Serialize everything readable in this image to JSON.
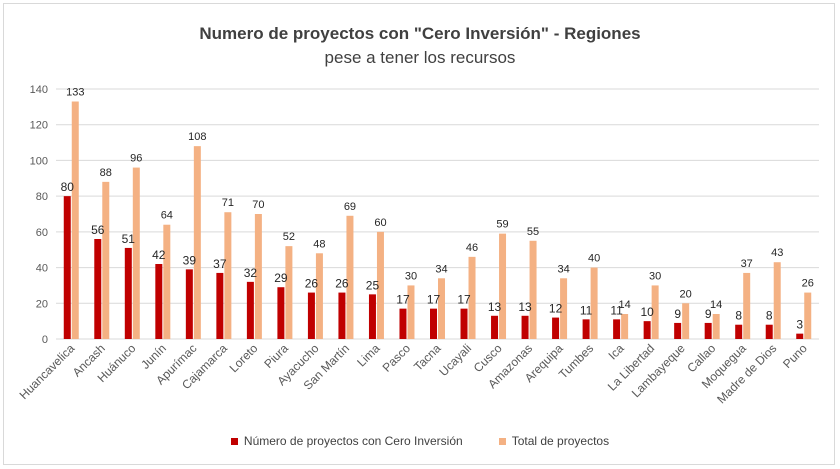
{
  "colors": {
    "series1": "#c00000",
    "series2": "#f4b183",
    "grid": "#d9d9d9",
    "text": "#595959"
  },
  "chart_data": {
    "type": "bar",
    "title": "Numero de proyectos con \"Cero Inversión\" - Regiones",
    "subtitle": "pese a tener los recursos",
    "categories": [
      "Huancavelica",
      "Ancash",
      "Huánuco",
      "Junín",
      "Apurímac",
      "Cajamarca",
      "Loreto",
      "Piura",
      "Ayacucho",
      "San Martín",
      "Lima",
      "Pasco",
      "Tacna",
      "Ucayali",
      "Cusco",
      "Amazonas",
      "Arequipa",
      "Tumbes",
      "Ica",
      "La Libertad",
      "Lambayeque",
      "Callao",
      "Moquegua",
      "Madre de Dios",
      "Puno"
    ],
    "series": [
      {
        "name": "Número de proyectos con Cero Inversión",
        "values": [
          80,
          56,
          51,
          42,
          39,
          37,
          32,
          29,
          26,
          26,
          25,
          17,
          17,
          17,
          13,
          13,
          12,
          11,
          11,
          10,
          9,
          9,
          8,
          8,
          3
        ]
      },
      {
        "name": "Total de  proyectos",
        "values": [
          133,
          88,
          96,
          64,
          108,
          71,
          70,
          52,
          48,
          69,
          60,
          30,
          34,
          46,
          59,
          55,
          34,
          40,
          14,
          30,
          20,
          14,
          37,
          43,
          26
        ]
      }
    ],
    "ylim": [
      0,
      140
    ],
    "yticks": [
      0,
      20,
      40,
      60,
      80,
      100,
      120,
      140
    ],
    "grid": true,
    "legend_position": "bottom"
  }
}
